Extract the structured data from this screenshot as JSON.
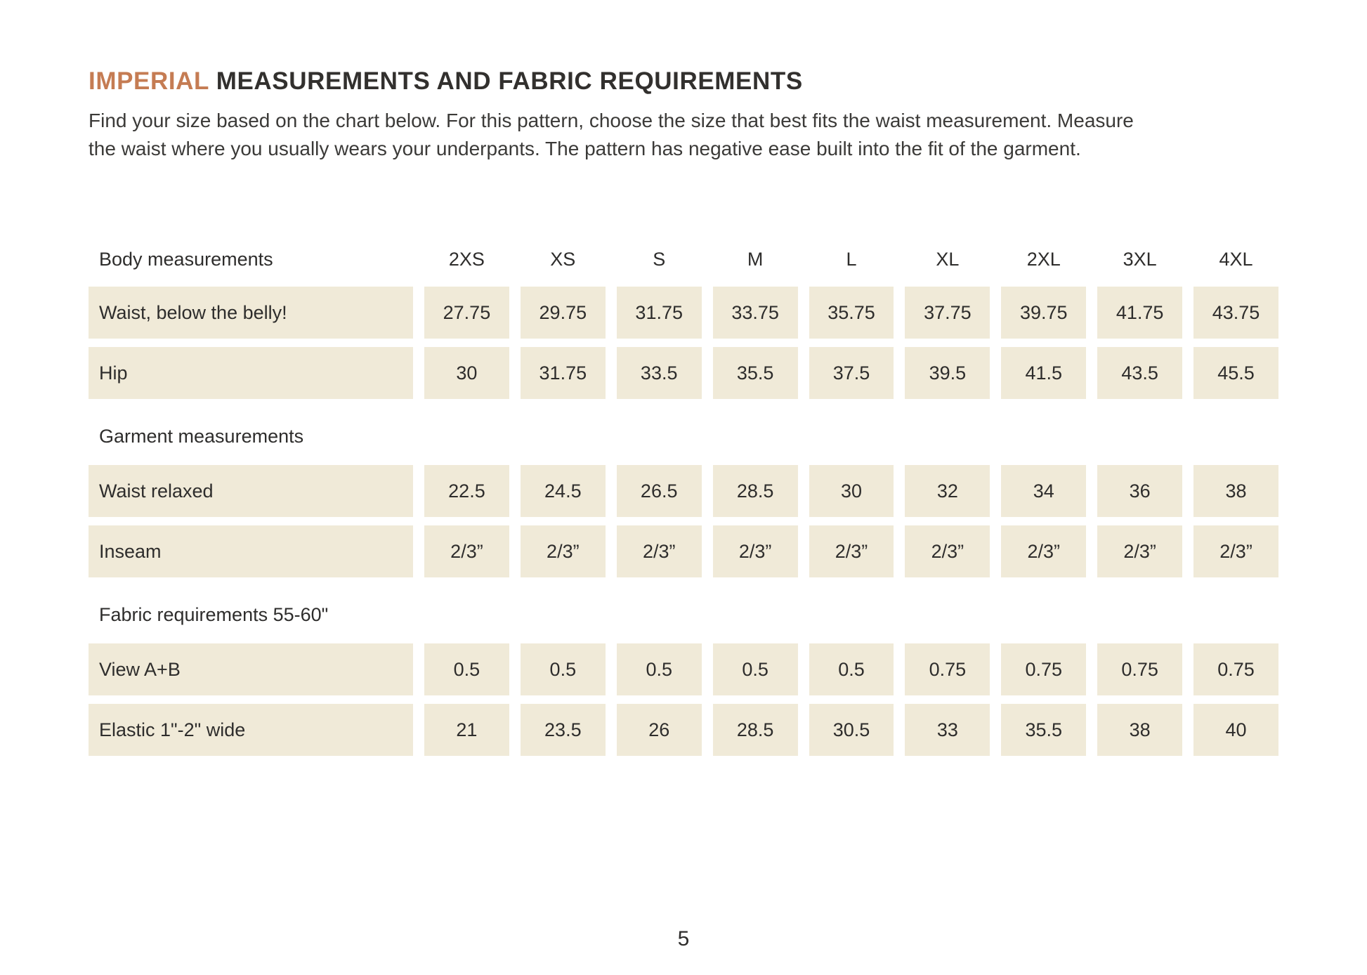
{
  "page": {
    "title_accent": "IMPERIAL",
    "title_rest": " MEASUREMENTS AND FABRIC REQUIREMENTS",
    "intro_lines": [
      "Find your size based on the chart below. For this pattern, choose the size that best fits the waist measurement. Measure",
      "the waist where you usually wears your underpants. The pattern has negative ease built into the fit of the garment."
    ],
    "page_number": "5"
  },
  "colors": {
    "accent": "#c57c53",
    "cell_background": "#f0ead8",
    "text": "#2e2d2c"
  },
  "table": {
    "size_headers": [
      "2XS",
      "XS",
      "S",
      "M",
      "L",
      "XL",
      "2XL",
      "3XL",
      "4XL"
    ],
    "sections": [
      {
        "header": "Body measurements",
        "rows": [
          {
            "label": "Waist, below the belly!",
            "values": [
              "27.75",
              "29.75",
              "31.75",
              "33.75",
              "35.75",
              "37.75",
              "39.75",
              "41.75",
              "43.75"
            ]
          },
          {
            "label": "Hip",
            "values": [
              "30",
              "31.75",
              "33.5",
              "35.5",
              "37.5",
              "39.5",
              "41.5",
              "43.5",
              "45.5"
            ]
          }
        ]
      },
      {
        "header": "Garment measurements",
        "rows": [
          {
            "label": "Waist relaxed",
            "values": [
              "22.5",
              "24.5",
              "26.5",
              "28.5",
              "30",
              "32",
              "34",
              "36",
              "38"
            ]
          },
          {
            "label": "Inseam",
            "values": [
              "2/3”",
              "2/3”",
              "2/3”",
              "2/3”",
              "2/3”",
              "2/3”",
              "2/3”",
              "2/3”",
              "2/3”"
            ]
          }
        ]
      },
      {
        "header": "Fabric requirements 55-60\"",
        "rows": [
          {
            "label": "View A+B",
            "values": [
              "0.5",
              "0.5",
              "0.5",
              "0.5",
              "0.5",
              "0.75",
              "0.75",
              "0.75",
              "0.75"
            ]
          },
          {
            "label": "Elastic 1\"-2\" wide",
            "values": [
              "21",
              "23.5",
              "26",
              "28.5",
              "30.5",
              "33",
              "35.5",
              "38",
              "40"
            ]
          }
        ]
      }
    ]
  }
}
